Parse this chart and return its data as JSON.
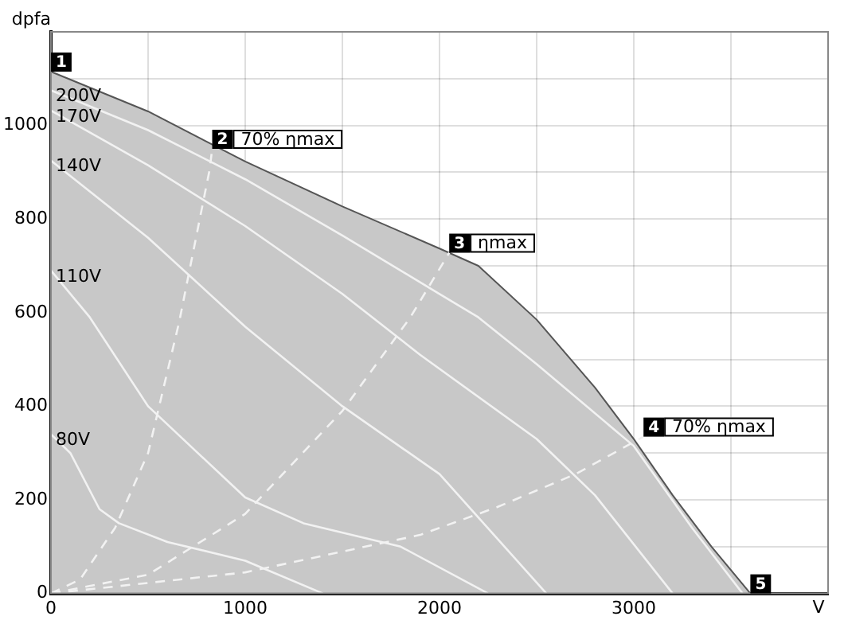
{
  "chart_data": {
    "type": "line",
    "xlabel": "V",
    "ylabel": "dpfa",
    "xlim": [
      0,
      4000
    ],
    "ylim": [
      0,
      1200
    ],
    "xticks": [
      0,
      {
        "value": 500,
        "label": null
      },
      1000,
      {
        "value": 1500,
        "label": null
      },
      2000,
      {
        "value": 2500,
        "label": null
      },
      3000,
      {
        "value": 3500,
        "label": null
      }
    ],
    "yticks": [
      0,
      {
        "value": 100,
        "label": null
      },
      200,
      {
        "value": 300,
        "label": null
      },
      400,
      {
        "value": 500,
        "label": null
      },
      600,
      {
        "value": 700,
        "label": null
      },
      800,
      {
        "value": 900,
        "label": null
      },
      1000,
      {
        "value": 1100,
        "label": null
      }
    ],
    "grid": true,
    "legend": false,
    "marker": "none",
    "series": [
      {
        "type": "area",
        "color": "#555555",
        "x": [
          0,
          500,
          1000,
          1500,
          2000,
          2200,
          2500,
          2800,
          3000,
          3200,
          3400,
          3600
        ],
        "values": [
          1115,
          1030,
          923,
          827,
          737,
          700,
          585,
          440,
          330,
          210,
          100,
          0
        ]
      },
      {
        "name": "200V",
        "color": "#f2f2f2",
        "x": [
          0,
          500,
          1000,
          1500,
          2000,
          2200,
          2500,
          3000,
          3300,
          3560
        ],
        "values": [
          1075,
          990,
          885,
          765,
          640,
          590,
          490,
          315,
          140,
          0
        ]
      },
      {
        "name": "170V",
        "color": "#f2f2f2",
        "x": [
          0,
          500,
          1000,
          1500,
          1900,
          2500,
          2800,
          3200
        ],
        "values": [
          1032,
          915,
          785,
          640,
          510,
          330,
          210,
          0
        ]
      },
      {
        "name": "140V",
        "color": "#f2f2f2",
        "x": [
          0,
          500,
          1000,
          1500,
          2000,
          2550
        ],
        "values": [
          925,
          760,
          570,
          400,
          255,
          0
        ]
      },
      {
        "name": "110V",
        "color": "#f2f2f2",
        "x": [
          0,
          200,
          500,
          1000,
          1300,
          1800,
          2250
        ],
        "values": [
          690,
          590,
          400,
          205,
          150,
          100,
          0
        ]
      },
      {
        "name": "80V",
        "color": "#f2f2f2",
        "x": [
          0,
          100,
          250,
          350,
          600,
          1000,
          1400
        ],
        "values": [
          340,
          300,
          180,
          150,
          110,
          70,
          0
        ]
      },
      {
        "color": "#f2f2f2",
        "line_style": "dashed",
        "x": [
          0,
          150,
          330,
          500,
          660,
          816,
          830
        ],
        "values": [
          0,
          30,
          140,
          300,
          580,
          904,
          950
        ]
      },
      {
        "color": "#f2f2f2",
        "line_style": "dashed",
        "x": [
          0,
          500,
          1000,
          1500,
          1850,
          2050
        ],
        "values": [
          0,
          40,
          170,
          390,
          590,
          728
        ]
      },
      {
        "color": "#f2f2f2",
        "line_style": "dashed",
        "x": [
          0,
          1000,
          1900,
          2300,
          2700,
          3050
        ],
        "values": [
          0,
          45,
          125,
          185,
          255,
          335
        ]
      }
    ],
    "annotations": [
      {
        "text": "1",
        "x": 0,
        "y": 1115
      },
      {
        "text": "2 70% ηmax",
        "x": 830,
        "y": 950
      },
      {
        "text": "3 ηmax",
        "x": 2050,
        "y": 728
      },
      {
        "text": "4 70% ηmax",
        "x": 3050,
        "y": 335
      },
      {
        "text": "5",
        "x": 3600,
        "y": 0
      }
    ]
  }
}
